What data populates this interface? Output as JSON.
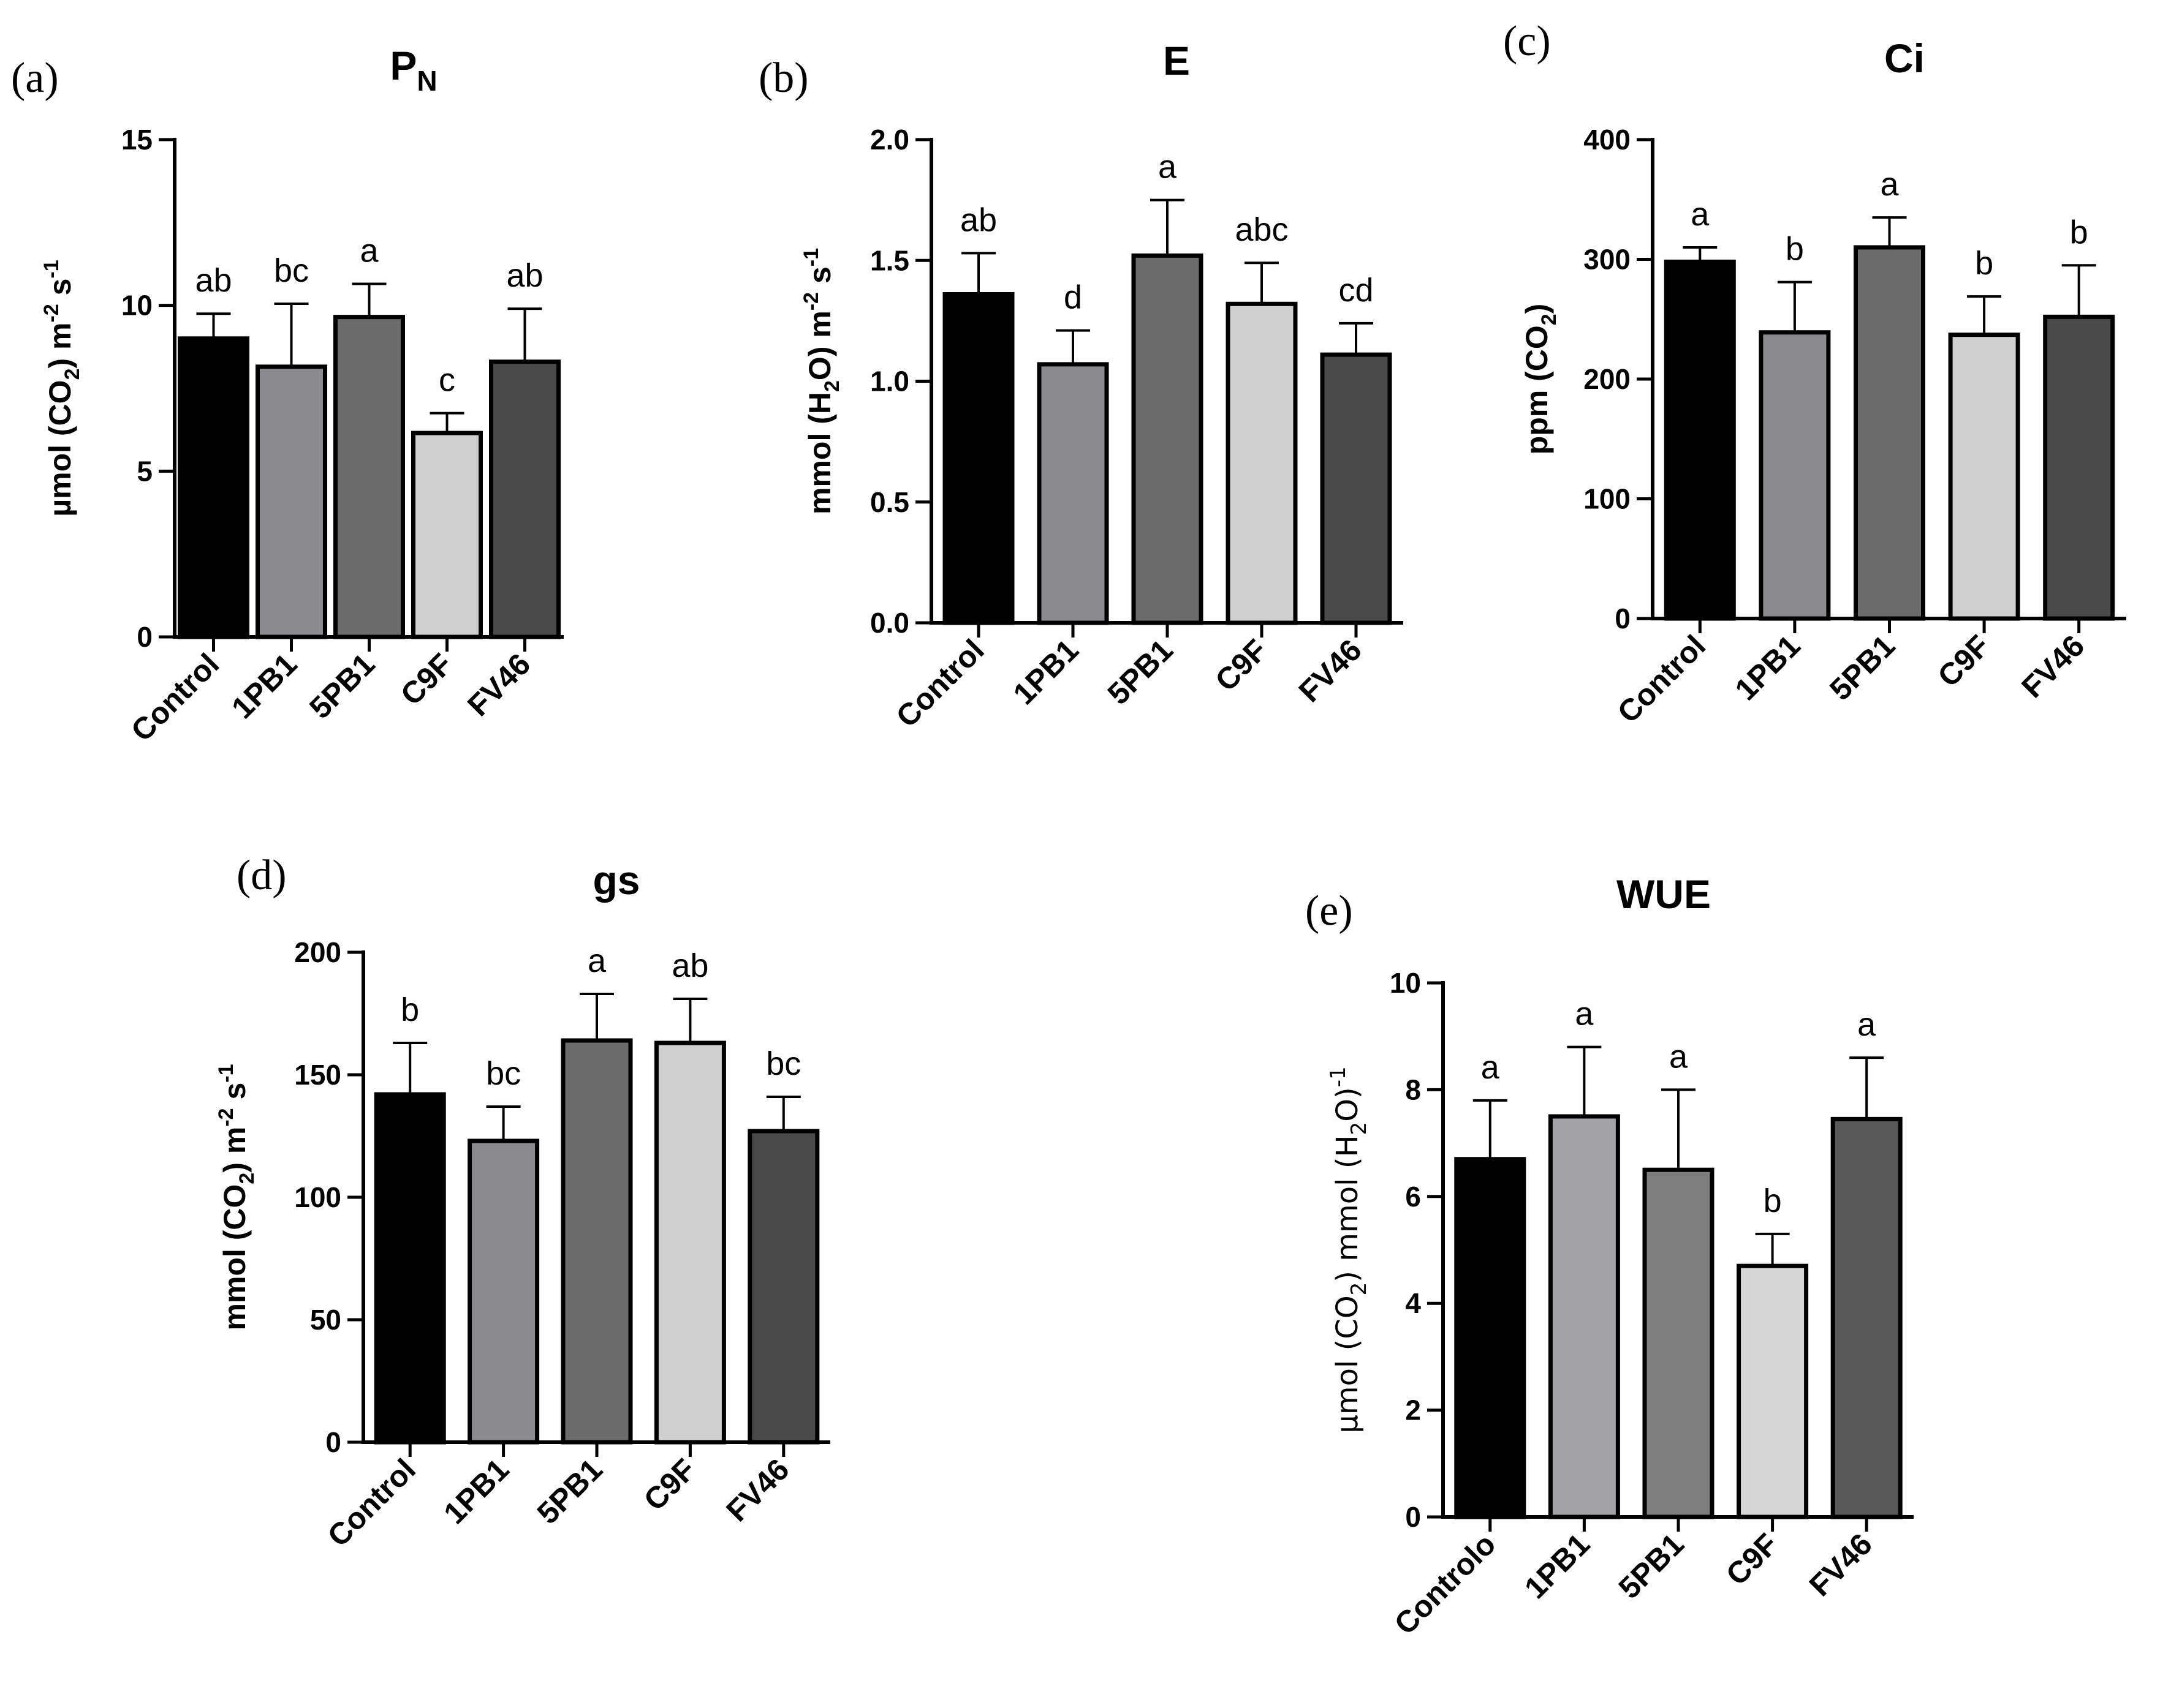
{
  "chart_data": [
    {
      "panel": "(a)",
      "type": "bar",
      "title": "P",
      "title_sub": "N",
      "ylabel": {
        "pre": "µmol (CO",
        "sub": "2",
        "mid": ") m",
        "sup1": "-2",
        "mid2": " s",
        "sup2": "-1"
      },
      "ylim": [
        0,
        15
      ],
      "yticks": [
        0,
        5,
        10,
        15
      ],
      "categories": [
        "Control",
        "1PB1",
        "5PB1",
        "C9F",
        "FV46"
      ],
      "values": [
        9.0,
        8.15,
        9.65,
        6.15,
        8.3
      ],
      "errors": [
        0.75,
        1.9,
        1.0,
        0.6,
        1.6
      ],
      "significance": [
        "ab",
        "bc",
        "a",
        "c",
        "ab"
      ],
      "colors": [
        "#000000",
        "#8b8a8f",
        "#6b6b6b",
        "#cfcfcf",
        "#4a4a4a"
      ]
    },
    {
      "panel": "(b)",
      "type": "bar",
      "title": "E",
      "ylabel": {
        "pre": "mmol (H",
        "sub": "2",
        "mid": "O) m",
        "sup1": "-2",
        "mid2": " s",
        "sup2": "-1"
      },
      "ylim": [
        0,
        2.0
      ],
      "yticks": [
        "0.0",
        "0.5",
        "1.0",
        "1.5",
        "2.0"
      ],
      "categories": [
        "Control",
        "1PB1",
        "5PB1",
        "C9F",
        "FV46"
      ],
      "values": [
        1.36,
        1.07,
        1.52,
        1.32,
        1.11
      ],
      "errors": [
        0.17,
        0.14,
        0.23,
        0.17,
        0.13
      ],
      "significance": [
        "ab",
        "d",
        "a",
        "abc",
        "cd"
      ],
      "colors": [
        "#000000",
        "#8b8a8f",
        "#6b6b6b",
        "#cfcfcf",
        "#4a4a4a"
      ]
    },
    {
      "panel": "(c)",
      "type": "bar",
      "title": "Ci",
      "ylabel": {
        "pre": "ppm (CO",
        "sub": "2",
        "mid": ")"
      },
      "ylim": [
        0,
        400
      ],
      "yticks": [
        0,
        100,
        200,
        300,
        400
      ],
      "categories": [
        "Control",
        "1PB1",
        "5PB1",
        "C9F",
        "FV46"
      ],
      "values": [
        298,
        239,
        310,
        237,
        252
      ],
      "errors": [
        12,
        42,
        25,
        32,
        43
      ],
      "significance": [
        "a",
        "b",
        "a",
        "b",
        "b"
      ],
      "colors": [
        "#000000",
        "#8b8a8f",
        "#6b6b6b",
        "#cfcfcf",
        "#4a4a4a"
      ]
    },
    {
      "panel": "(d)",
      "type": "bar",
      "title": "gs",
      "ylabel": {
        "pre": "mmol (CO",
        "sub": "2",
        "mid": ") m",
        "sup1": "-2",
        "mid2": " s",
        "sup2": "-1"
      },
      "ylim": [
        0,
        200
      ],
      "yticks": [
        0,
        50,
        100,
        150,
        200
      ],
      "categories": [
        "Control",
        "1PB1",
        "5PB1",
        "C9F",
        "FV46"
      ],
      "values": [
        142,
        123,
        164,
        163,
        127
      ],
      "errors": [
        21,
        14,
        19,
        18,
        14
      ],
      "significance": [
        "b",
        "bc",
        "a",
        "ab",
        "bc"
      ],
      "colors": [
        "#000000",
        "#8b8a8f",
        "#6b6b6b",
        "#cfcfcf",
        "#4a4a4a"
      ]
    },
    {
      "panel": "(e)",
      "type": "bar",
      "title": "WUE",
      "ylabel": {
        "pre": "µmol (CO",
        "sub": "2",
        "mid": ") mmol (H",
        "sub2": "2",
        "mid2": "O)",
        "sup2": "-1"
      },
      "ylim": [
        0,
        10
      ],
      "yticks": [
        0,
        2,
        4,
        6,
        8,
        10
      ],
      "categories": [
        "Controlo",
        "1PB1",
        "5PB1",
        "C9F",
        "FV46"
      ],
      "values": [
        6.7,
        7.5,
        6.5,
        4.7,
        7.45
      ],
      "errors": [
        1.1,
        1.3,
        1.5,
        0.6,
        1.15
      ],
      "significance": [
        "a",
        "a",
        "a",
        "b",
        "a"
      ],
      "colors": [
        "#000000",
        "#a3a2a7",
        "#7d7d7d",
        "#d6d6d6",
        "#595959"
      ]
    }
  ]
}
